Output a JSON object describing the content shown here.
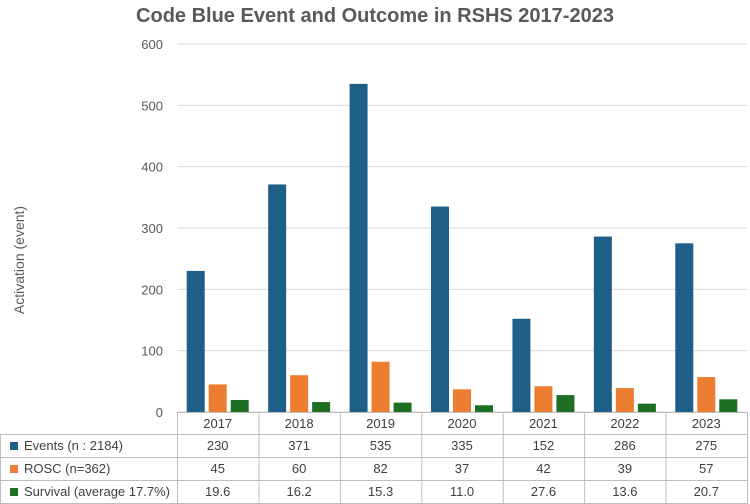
{
  "chart_data": {
    "type": "bar",
    "title": "Code Blue Event and Outcome in  RSHS  2017-2023",
    "ylabel": "Activation (event)",
    "xlabel": "",
    "ylim": [
      0,
      600
    ],
    "yticks": [
      0,
      100,
      200,
      300,
      400,
      500,
      600
    ],
    "grid": true,
    "legend": "data table below chart",
    "categories": [
      "2017",
      "2018",
      "2019",
      "2020",
      "2021",
      "2022",
      "2023"
    ],
    "series": [
      {
        "name": "Events (n : 2184)",
        "color": "#1d5f87",
        "values": [
          230,
          371,
          535,
          335,
          152,
          286,
          275
        ],
        "labels": [
          "230",
          "371",
          "535",
          "335",
          "152",
          "286",
          "275"
        ]
      },
      {
        "name": "ROSC (n=362)",
        "color": "#ec7d31",
        "values": [
          45,
          60,
          82,
          37,
          42,
          39,
          57
        ],
        "labels": [
          "45",
          "60",
          "82",
          "37",
          "42",
          "39",
          "57"
        ]
      },
      {
        "name": "Survival (average 17.7%)",
        "color": "#1e6f23",
        "values": [
          19.6,
          16.2,
          15.3,
          11.0,
          27.6,
          13.6,
          20.7
        ],
        "labels": [
          "19.6",
          "16.2",
          "15.3",
          "11.0",
          "27.6",
          "13.6",
          "20.7"
        ]
      }
    ]
  }
}
